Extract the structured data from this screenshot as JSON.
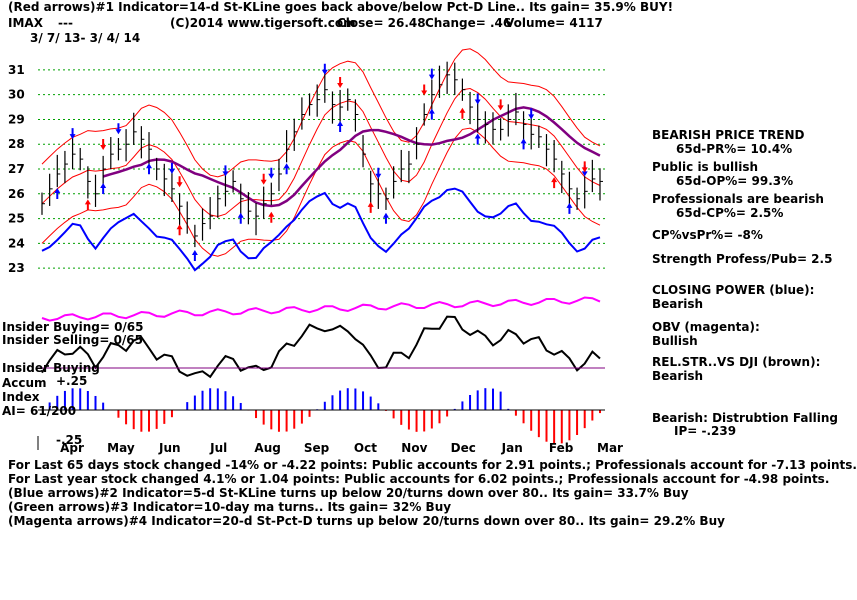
{
  "header": {
    "line1": "(Red arrows)#1 Indicator=14-d St-KLine goes back above/below Pct-D Line.. Its gain= 35.9% BUY!",
    "ticker": "IMAX",
    "dashes": "---",
    "copyright": "(C)2014 www.tigersoft.com",
    "close": "Close=  26.48",
    "change": "Change= .46",
    "volume": "Volume= 4117",
    "range": "3/ 7/ 13-  3/ 4/ 14"
  },
  "left_labels": {
    "insider_buying_count": "Insider Buying= 0/65",
    "insider_selling_count": "Insider Selling= 0/65",
    "insider_buying": "Insider Buying",
    "accum_index": "Accum\nIndex",
    "accum_plus": "+.25",
    "ai": "AI= 61/200",
    "accum_minus": "-.25"
  },
  "right_panel": {
    "trend_title": "BEARISH PRICE TREND",
    "pr": "65d-PR%= 10.4%",
    "public_title": "Public is bullish",
    "op": "65d-OP%= 99.3%",
    "prof_title": "Professionals are bearish",
    "cp": "65d-CP%= 2.5%",
    "cpvspr": "CP%vsPr%= -8%",
    "strength": "Strength Profess/Pub= 2.5",
    "closing_power": "CLOSING POWER (blue):",
    "closing_power_val": "Bearish",
    "obv": "OBV (magenta):",
    "obv_val": "Bullish",
    "relstr": "REL.STR..VS DJI (brown):",
    "relstr_val": "Bearish",
    "distribution": "Bearish: Distrubtion Falling",
    "ip": "IP= -.239"
  },
  "footer": {
    "line1": "For Last 65 days stock changed -14% or -4.22 points:  Public accounts for  2.91 points.;  Professionals account for -7.13 points.",
    "line2": "For Last year stock changed  4.1% or  1.04 points:  Public accounts for  6.02 points.;  Professionals account for -4.98 points.",
    "line3": "(Blue arrows)#2 Indicator=5-d St-KLine turns up below 20/turns down over 80.. Its gain= 33.7% Buy",
    "line4": "(Green arrows)#3 Indicator=10-day ma turns.. Its gain= 32% Buy",
    "line5": "(Magenta arrows)#4 Indicator=20-d St-Pct-D turns up below 20/turns down over 80.. Its gain= 29.2% Buy"
  },
  "chart_data": {
    "type": "line",
    "x_labels": [
      "Apr",
      "May",
      "Jun",
      "Jul",
      "Aug",
      "Sep",
      "Oct",
      "Nov",
      "Dec",
      "Jan",
      "Feb",
      "Mar"
    ],
    "y_ticks": [
      23,
      24,
      25,
      26,
      27,
      28,
      29,
      30,
      31
    ],
    "ylim": [
      22.2,
      31.6
    ],
    "grid": true,
    "price_close": [
      25.6,
      26.2,
      26.8,
      27.2,
      27.6,
      27.4,
      26.5,
      26.0,
      27.0,
      27.6,
      27.8,
      28.0,
      28.5,
      28.2,
      27.8,
      27.0,
      26.6,
      26.2,
      25.5,
      25.0,
      24.3,
      24.8,
      25.1,
      25.8,
      26.1,
      26.5,
      25.8,
      25.3,
      25.1,
      25.6,
      26.0,
      26.8,
      27.8,
      28.5,
      29.2,
      29.6,
      29.8,
      30.2,
      29.6,
      29.5,
      29.8,
      29.2,
      27.6,
      26.4,
      26.0,
      25.8,
      26.5,
      27.0,
      27.2,
      28.0,
      29.2,
      30.0,
      30.4,
      30.8,
      30.6,
      30.2,
      29.5,
      29.0,
      28.8,
      28.6,
      28.6,
      29.0,
      29.3,
      28.8,
      28.4,
      28.3,
      27.8,
      27.4,
      26.8,
      26.2,
      25.8,
      26.1,
      26.6,
      26.5
    ],
    "series": [
      {
        "name": "CLOSING POWER (blue)",
        "color": "#0000ff"
      },
      {
        "name": "OBV (magenta)",
        "color": "#ff00ff"
      },
      {
        "name": "REL.STR..VS DJI (brown)",
        "color": "#800080"
      }
    ],
    "arrows": {
      "red_up": 6,
      "red_down": 7,
      "blue_up": 12,
      "blue_down": 11
    }
  }
}
